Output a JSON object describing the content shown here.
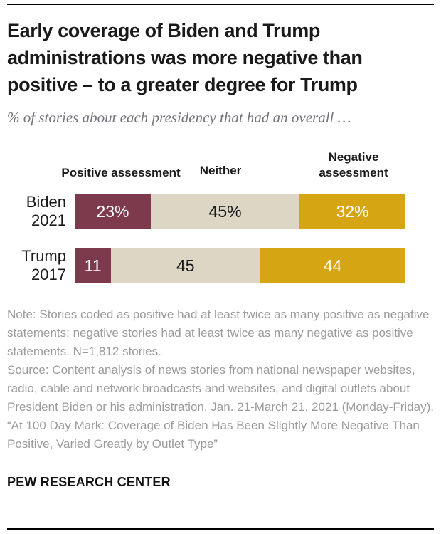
{
  "header": {
    "title": "Early coverage of Biden and Trump administrations was more negative than positive – to a greater degree for Trump",
    "subtitle": "% of stories about each presidency that had an overall …"
  },
  "chart_data": {
    "type": "bar",
    "variant": "horizontal-stacked",
    "xlim": [
      0,
      100
    ],
    "unit": "percent",
    "column_headers": [
      "Positive assessment",
      "Neither",
      "Negative assessment"
    ],
    "categories": [
      "Biden 2021",
      "Trump 2017"
    ],
    "series": [
      {
        "name": "Positive assessment",
        "values": [
          23,
          11
        ]
      },
      {
        "name": "Neither",
        "values": [
          45,
          45
        ]
      },
      {
        "name": "Negative assessment",
        "values": [
          32,
          44
        ]
      }
    ],
    "rows": [
      {
        "label_lines": [
          "Biden",
          "2021"
        ],
        "values": [
          23,
          45,
          32
        ],
        "display_labels": [
          "23%",
          "45%",
          "32%"
        ]
      },
      {
        "label_lines": [
          "Trump",
          "2017"
        ],
        "values": [
          11,
          45,
          44
        ],
        "display_labels": [
          "11",
          "45",
          "44"
        ]
      }
    ],
    "colors": {
      "positive": "#7D3A4C",
      "neither": "#DDD6C5",
      "negative": "#D6A513"
    },
    "label_text_colors": {
      "positive": "#FFFFFF",
      "neither": "#1A1A1A",
      "negative": "#FFFFFF"
    },
    "legend_position": "column-headers-above-bars",
    "grid": false
  },
  "notes": {
    "note": "Note: Stories coded as positive had at least twice as many positive as negative statements; negative stories had at least twice as many negative as positive statements. N=1,812 stories.",
    "source": "Source: Content analysis of news stories from national newspaper websites, radio, cable and network broadcasts and websites, and digital outlets about President Biden or his administration, Jan. 21-March 21, 2021 (Monday-Friday).",
    "report_title": "“At 100 Day Mark: Coverage of Biden Has Been Slightly More Negative Than Positive, Varied Greatly by Outlet Type”"
  },
  "footer": {
    "brand": "PEW RESEARCH CENTER"
  }
}
